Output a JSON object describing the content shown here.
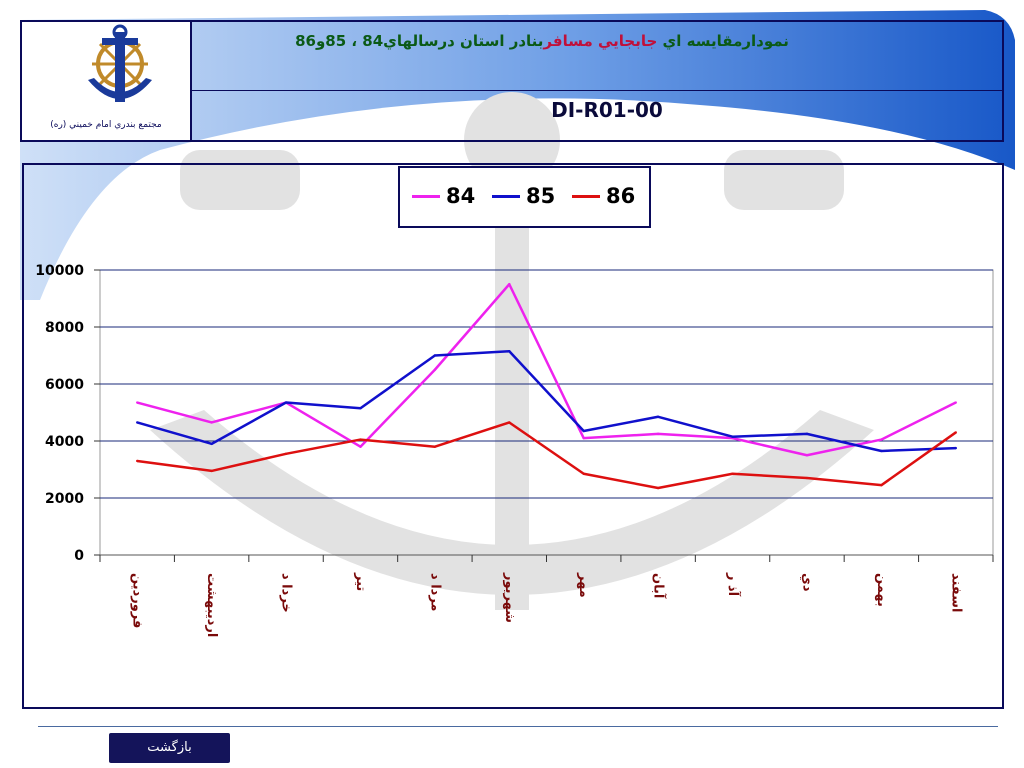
{
  "header": {
    "title_part1": "نمودارمقايسه اي ",
    "title_part2": "جابجايي مسافر",
    "title_part3": "بنادر استان درسالهاي84 ، 85و86",
    "doc_code": "DI-R01-00",
    "logo_caption": "مجتمع بندري امام خميني (ره)"
  },
  "colors": {
    "series_84": "#ee22ee",
    "series_85": "#1010cc",
    "series_86": "#dd1010",
    "frame": "#0a0a5a",
    "category_labels": "#7a0a0a",
    "back_button": "#14145a"
  },
  "chart_data": {
    "type": "line",
    "categories": [
      "فروردين",
      "ارديبهشت",
      "خرداد",
      "تير",
      "مرداد",
      "شهريور",
      "مهر",
      "آبان",
      "آذر",
      "دي",
      "بهمن",
      "اسفند"
    ],
    "category_labels_display": [
      "فروردين",
      "ارديبهشت",
      "خردا د",
      "تير",
      "مردا د",
      "شهريور",
      "مهر",
      "آبان",
      "آذ ر",
      "دي",
      "بهمن",
      "اسفند"
    ],
    "series": [
      {
        "name": "84",
        "values": [
          5350,
          4650,
          5350,
          3800,
          6500,
          9500,
          4100,
          4250,
          4100,
          3500,
          4050,
          5350
        ]
      },
      {
        "name": "85",
        "values": [
          4650,
          3900,
          5350,
          5150,
          7000,
          7150,
          4350,
          4850,
          4150,
          4250,
          3650,
          3750
        ]
      },
      {
        "name": "86",
        "values": [
          3300,
          2950,
          3550,
          4050,
          3800,
          4650,
          2850,
          2350,
          2850,
          2700,
          2450,
          4300
        ]
      }
    ],
    "ylim": [
      0,
      10000
    ],
    "yticks": [
      0,
      2000,
      4000,
      6000,
      8000,
      10000
    ],
    "ytick_labels": [
      "0",
      "2000",
      "4000",
      "6000",
      "8000",
      "10000"
    ],
    "grid": "horizontal",
    "legend_position": "top-center"
  },
  "footer": {
    "back_label": "بازگشت"
  }
}
